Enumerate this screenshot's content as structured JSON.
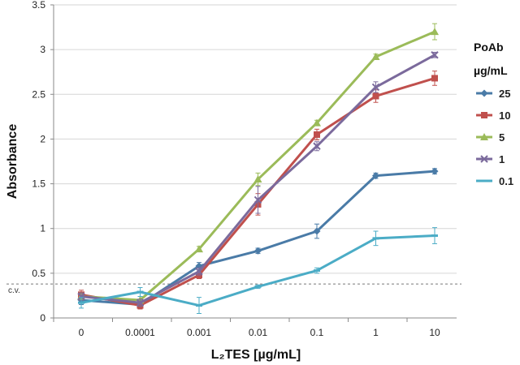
{
  "chart_data": {
    "type": "line",
    "title": "",
    "xlabel": "L₂TES [µg/mL]",
    "ylabel": "Absorbance",
    "categories": [
      "0",
      "0.0001",
      "0.001",
      "0.01",
      "0.1",
      "1",
      "10"
    ],
    "ylim": [
      0,
      3.5
    ],
    "yticks": [
      0,
      0.5,
      1,
      1.5,
      2,
      2.5,
      3,
      3.5
    ],
    "ytick_labels": [
      "0",
      "0.5",
      "1",
      "1.5",
      "2",
      "2.5",
      "3",
      "3.5"
    ],
    "legend_title_line1": "PoAb",
    "legend_title_line2": "µg/mL",
    "legend_position": "right",
    "cutoff": {
      "label": "c.v.",
      "value": 0.38
    },
    "series": [
      {
        "name": "25",
        "color": "#4a7ba7",
        "marker": "diamond",
        "values": [
          0.2,
          0.15,
          0.58,
          0.75,
          0.97,
          1.59,
          1.64
        ],
        "errors": [
          0.05,
          0.04,
          0.04,
          0.03,
          0.08,
          0.03,
          0.03
        ]
      },
      {
        "name": "10",
        "color": "#c0504d",
        "marker": "square",
        "values": [
          0.26,
          0.14,
          0.48,
          1.27,
          2.05,
          2.48,
          2.68
        ],
        "errors": [
          0.05,
          0.04,
          0.04,
          0.12,
          0.06,
          0.07,
          0.08
        ]
      },
      {
        "name": "5",
        "color": "#9bbb59",
        "marker": "triangle",
        "values": [
          0.24,
          0.2,
          0.77,
          1.55,
          2.18,
          2.92,
          3.2
        ],
        "errors": [
          0.04,
          0.04,
          0.03,
          0.07,
          0.03,
          0.03,
          0.09
        ]
      },
      {
        "name": "1",
        "color": "#7b6a9c",
        "marker": "x",
        "values": [
          0.24,
          0.17,
          0.52,
          1.32,
          1.92,
          2.58,
          2.94
        ],
        "errors": [
          0.04,
          0.04,
          0.04,
          0.15,
          0.05,
          0.06,
          0.03
        ]
      },
      {
        "name": "0.1",
        "color": "#4bacc6",
        "marker": "dash",
        "values": [
          0.17,
          0.29,
          0.14,
          0.35,
          0.53,
          0.89,
          0.92
        ],
        "errors": [
          0.06,
          0.05,
          0.09,
          0.02,
          0.03,
          0.08,
          0.09
        ]
      }
    ]
  }
}
